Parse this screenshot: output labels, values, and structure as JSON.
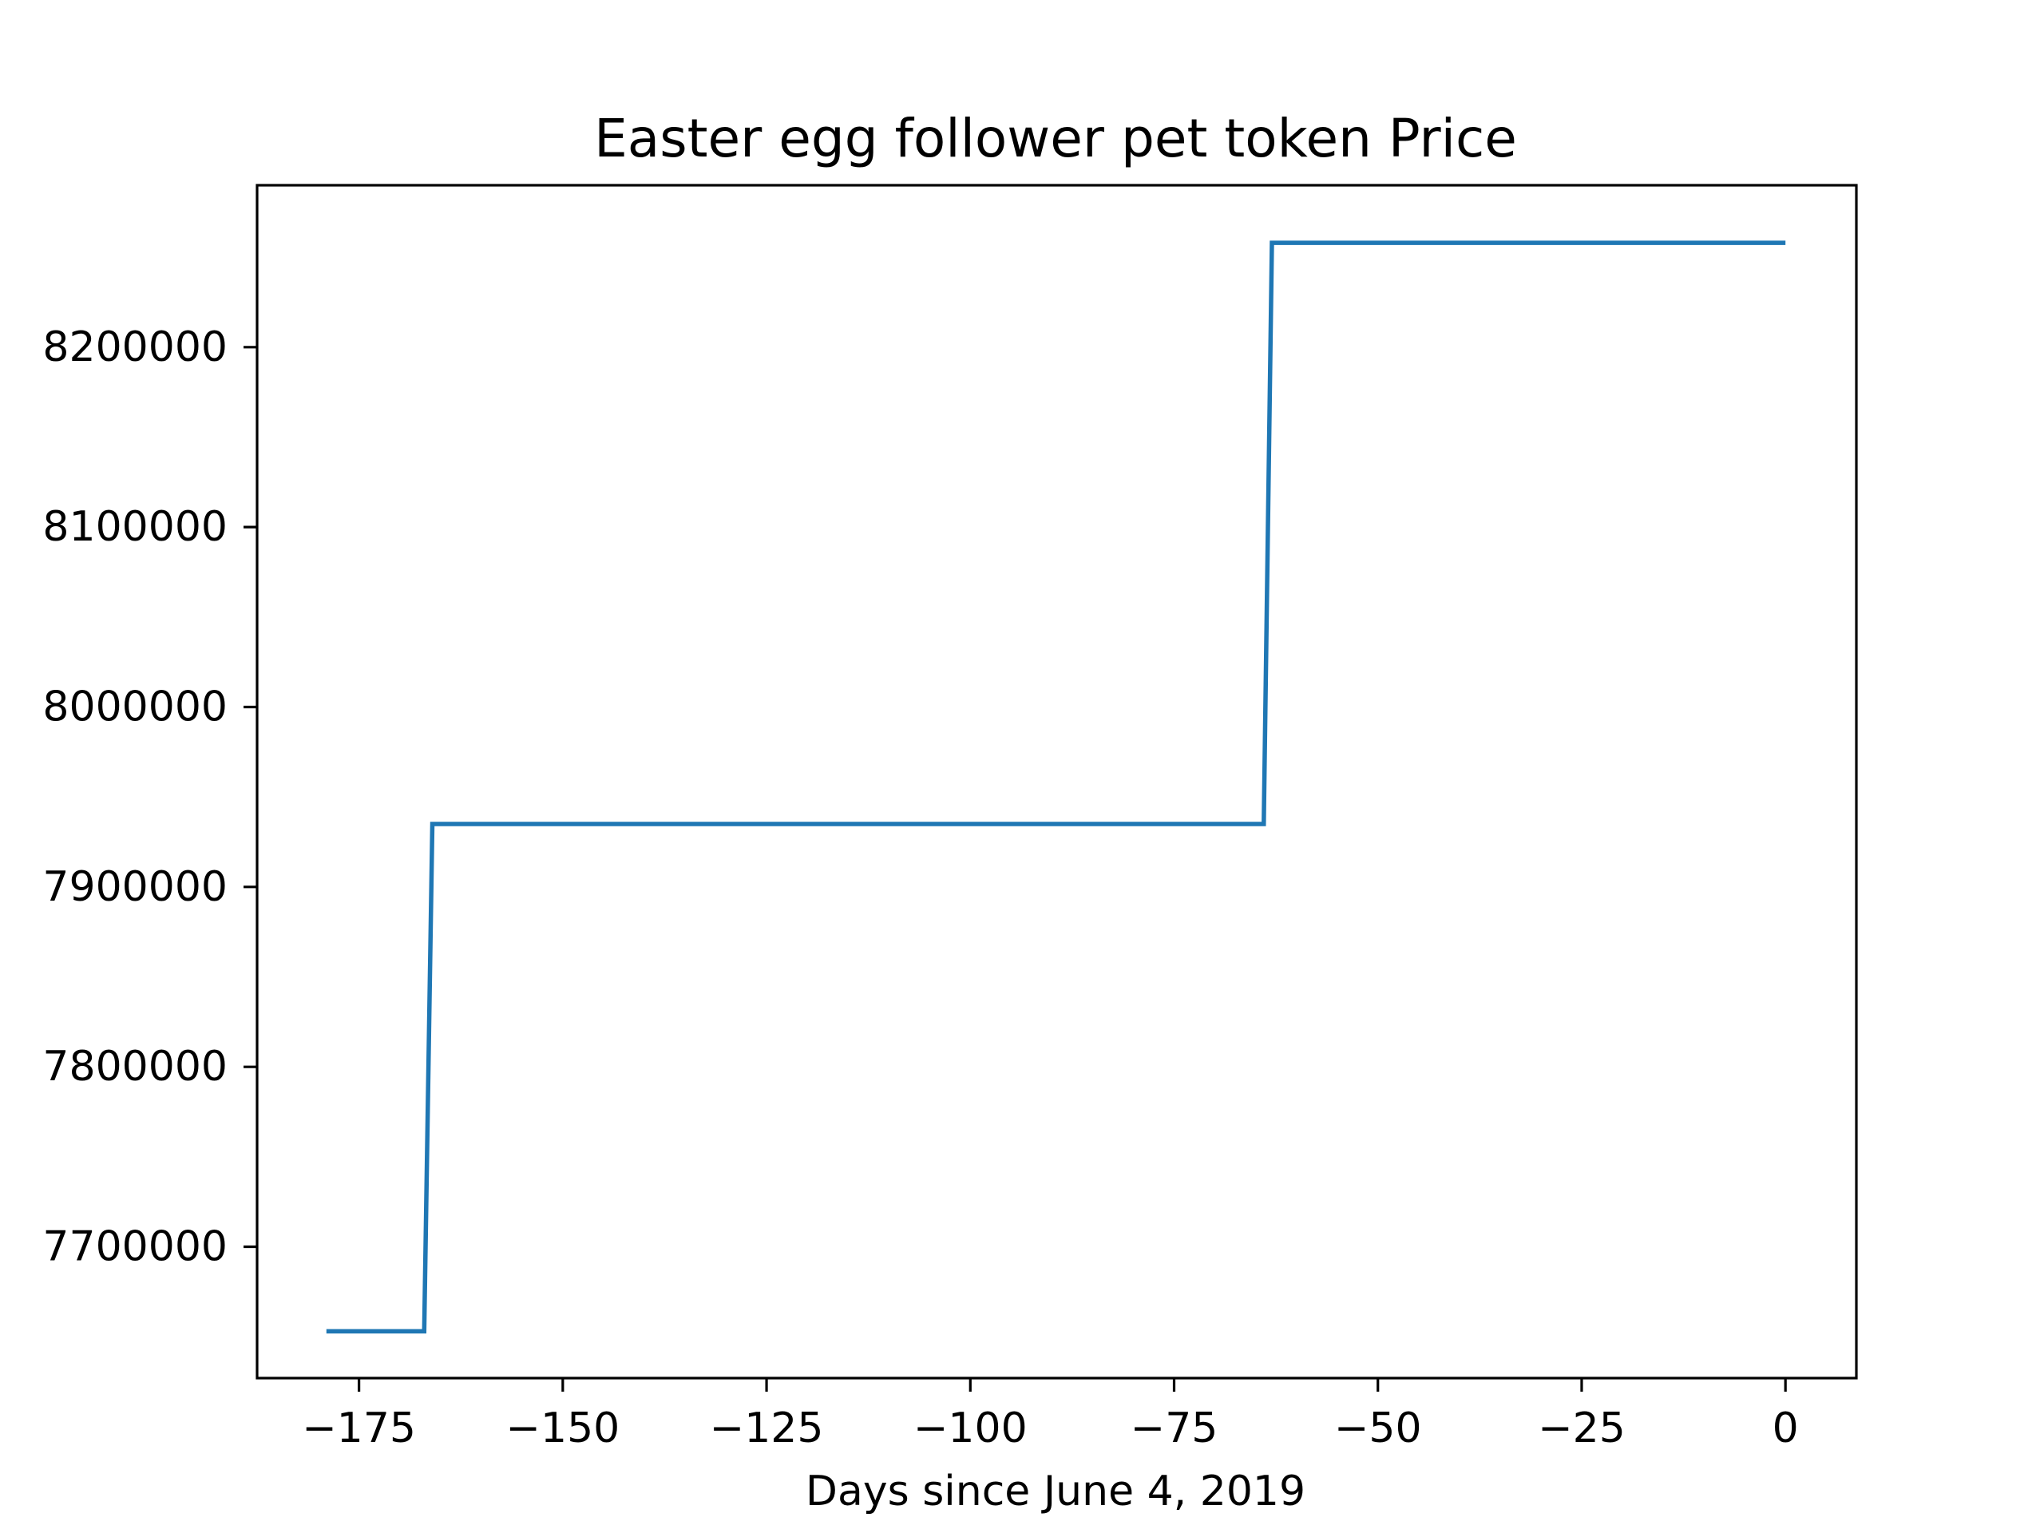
{
  "chart_data": {
    "type": "line",
    "title": "Easter egg follower pet token Price",
    "xlabel": "Days since June 4, 2019",
    "ylabel": "",
    "xlim": [
      -187.5,
      8.7
    ],
    "ylim": [
      7627000,
      8290000
    ],
    "x_ticks": [
      {
        "value": -175,
        "label": "−175"
      },
      {
        "value": -150,
        "label": "−150"
      },
      {
        "value": -125,
        "label": "−125"
      },
      {
        "value": -100,
        "label": "−100"
      },
      {
        "value": -75,
        "label": "−75"
      },
      {
        "value": -50,
        "label": "−50"
      },
      {
        "value": -25,
        "label": "−25"
      },
      {
        "value": 0,
        "label": "0"
      }
    ],
    "y_ticks": [
      {
        "value": 7700000,
        "label": "7700000"
      },
      {
        "value": 7800000,
        "label": "7800000"
      },
      {
        "value": 7900000,
        "label": "7900000"
      },
      {
        "value": 8000000,
        "label": "8000000"
      },
      {
        "value": 8100000,
        "label": "8100000"
      },
      {
        "value": 8200000,
        "label": "8200000"
      }
    ],
    "grid": false,
    "legend": "none",
    "series": [
      {
        "color": "#1f77b4",
        "x": [
          -179,
          -167,
          -166,
          -64,
          -63,
          0
        ],
        "y": [
          7653000,
          7653000,
          7935000,
          7935000,
          8258000,
          8258000
        ]
      }
    ]
  }
}
